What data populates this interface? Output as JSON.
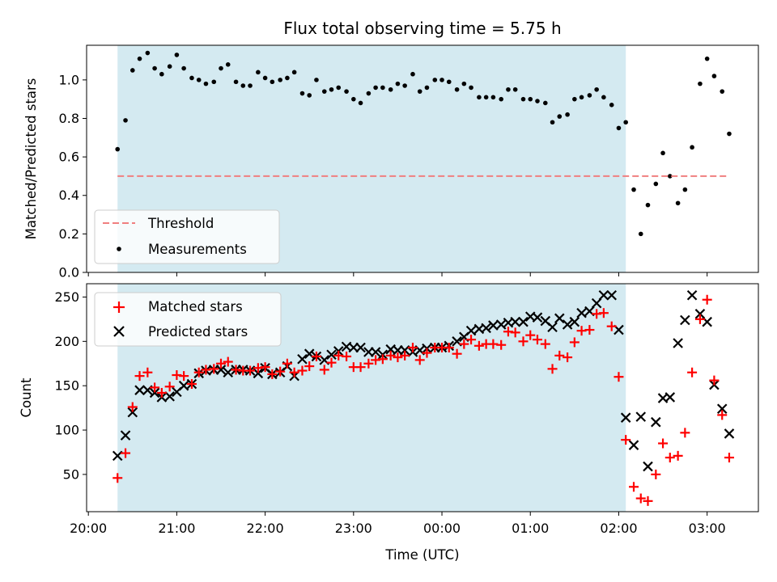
{
  "chart_data": [
    {
      "type": "scatter",
      "title": "Flux total observing time = 5.75 h",
      "xlabel": "",
      "ylabel": "Matched/Predicted stars",
      "ylim": [
        0,
        1.18
      ],
      "yticks": [
        0.0,
        0.2,
        0.4,
        0.6,
        0.8,
        1.0
      ],
      "ytick_labels": [
        "0.0",
        "0.2",
        "0.4",
        "0.6",
        "0.8",
        "1.0"
      ],
      "shaded_interval": [
        20.33,
        26.08
      ],
      "shaded_color": "#d4eaf1",
      "threshold": {
        "name": "Threshold",
        "value": 0.5,
        "color": "#f07f7f",
        "style": "dashed"
      },
      "legend_position": "lower-left",
      "series": [
        {
          "name": "Measurements",
          "marker": "dot",
          "color": "#000000",
          "x": [
            20.33,
            20.42,
            20.5,
            20.58,
            20.67,
            20.75,
            20.83,
            20.92,
            21.0,
            21.08,
            21.17,
            21.25,
            21.33,
            21.42,
            21.5,
            21.58,
            21.67,
            21.75,
            21.83,
            21.92,
            22.0,
            22.08,
            22.17,
            22.25,
            22.33,
            22.42,
            22.5,
            22.58,
            22.67,
            22.75,
            22.83,
            22.92,
            23.0,
            23.08,
            23.17,
            23.25,
            23.33,
            23.42,
            23.5,
            23.58,
            23.67,
            23.75,
            23.83,
            23.92,
            24.0,
            24.08,
            24.17,
            24.25,
            24.33,
            24.42,
            24.5,
            24.58,
            24.67,
            24.75,
            24.83,
            24.92,
            25.0,
            25.08,
            25.17,
            25.25,
            25.33,
            25.42,
            25.5,
            25.58,
            25.67,
            25.75,
            25.83,
            25.92,
            26.0,
            26.08,
            26.17,
            26.25,
            26.33,
            26.42,
            26.5,
            26.58,
            26.67,
            26.75,
            26.83,
            26.92,
            27.0,
            27.08,
            27.17,
            27.25
          ],
          "y": [
            0.64,
            0.79,
            1.05,
            1.11,
            1.14,
            1.06,
            1.03,
            1.07,
            1.13,
            1.06,
            1.01,
            1.0,
            0.98,
            0.99,
            1.06,
            1.08,
            0.99,
            0.97,
            0.97,
            1.04,
            1.01,
            0.99,
            1.0,
            1.01,
            1.04,
            0.93,
            0.92,
            1.0,
            0.94,
            0.95,
            0.96,
            0.94,
            0.9,
            0.88,
            0.93,
            0.96,
            0.96,
            0.95,
            0.98,
            0.97,
            1.03,
            0.94,
            0.96,
            1.0,
            1.0,
            0.99,
            0.95,
            0.98,
            0.96,
            0.91,
            0.91,
            0.91,
            0.9,
            0.95,
            0.95,
            0.9,
            0.9,
            0.89,
            0.88,
            0.78,
            0.81,
            0.82,
            0.9,
            0.91,
            0.92,
            0.95,
            0.91,
            0.87,
            0.75,
            0.78,
            0.43,
            0.2,
            0.35,
            0.46,
            0.62,
            0.5,
            0.36,
            0.43,
            0.65,
            0.98,
            1.11,
            1.02,
            0.94,
            0.72
          ]
        }
      ]
    },
    {
      "type": "scatter",
      "title": "",
      "xlabel": "Time (UTC)",
      "ylabel": "Count",
      "ylim": [
        8,
        265
      ],
      "yticks": [
        50,
        100,
        150,
        200,
        250
      ],
      "ytick_labels": [
        "50",
        "100",
        "150",
        "200",
        "250"
      ],
      "xlim": [
        19.98,
        27.58
      ],
      "xticks": [
        20,
        21,
        22,
        23,
        24,
        25,
        26,
        27
      ],
      "xtick_labels": [
        "20:00",
        "21:00",
        "22:00",
        "23:00",
        "00:00",
        "01:00",
        "02:00",
        "03:00"
      ],
      "shaded_interval": [
        20.33,
        26.08
      ],
      "shaded_color": "#d4eaf1",
      "legend_position": "upper-left",
      "series": [
        {
          "name": "Matched stars",
          "marker": "plus",
          "color": "#ff0000",
          "x": [
            20.33,
            20.42,
            20.5,
            20.58,
            20.67,
            20.75,
            20.83,
            20.92,
            21.0,
            21.08,
            21.17,
            21.25,
            21.33,
            21.42,
            21.5,
            21.58,
            21.67,
            21.75,
            21.83,
            21.92,
            22.0,
            22.08,
            22.17,
            22.25,
            22.33,
            22.42,
            22.5,
            22.58,
            22.67,
            22.75,
            22.83,
            22.92,
            23.0,
            23.08,
            23.17,
            23.25,
            23.33,
            23.42,
            23.5,
            23.58,
            23.67,
            23.75,
            23.83,
            23.92,
            24.0,
            24.08,
            24.17,
            24.25,
            24.33,
            24.42,
            24.5,
            24.58,
            24.67,
            24.75,
            24.83,
            24.92,
            25.0,
            25.08,
            25.17,
            25.25,
            25.33,
            25.42,
            25.5,
            25.58,
            25.67,
            25.75,
            25.83,
            25.92,
            26.0,
            26.08,
            26.17,
            26.25,
            26.33,
            26.42,
            26.5,
            26.58,
            26.67,
            26.75,
            26.83,
            26.92,
            27.0,
            27.08,
            27.17,
            27.25
          ],
          "y": [
            46,
            74,
            126,
            161,
            165,
            148,
            142,
            149,
            162,
            161,
            152,
            165,
            168,
            169,
            175,
            177,
            168,
            167,
            167,
            170,
            171,
            163,
            166,
            175,
            165,
            167,
            172,
            183,
            168,
            176,
            184,
            183,
            171,
            171,
            175,
            179,
            180,
            184,
            182,
            184,
            193,
            179,
            187,
            193,
            193,
            193,
            186,
            197,
            202,
            195,
            197,
            197,
            196,
            211,
            210,
            200,
            207,
            202,
            197,
            169,
            184,
            182,
            199,
            212,
            213,
            231,
            232,
            217,
            160,
            89,
            36,
            23,
            20,
            50,
            85,
            69,
            71,
            97,
            165,
            225,
            247,
            156,
            117,
            69
          ]
        },
        {
          "name": "Predicted stars",
          "marker": "x",
          "color": "#000000",
          "x": [
            20.33,
            20.42,
            20.5,
            20.58,
            20.67,
            20.75,
            20.83,
            20.92,
            21.0,
            21.08,
            21.17,
            21.25,
            21.33,
            21.42,
            21.5,
            21.58,
            21.67,
            21.75,
            21.83,
            21.92,
            22.0,
            22.08,
            22.17,
            22.25,
            22.33,
            22.42,
            22.5,
            22.58,
            22.67,
            22.75,
            22.83,
            22.92,
            23.0,
            23.08,
            23.17,
            23.25,
            23.33,
            23.42,
            23.5,
            23.58,
            23.67,
            23.75,
            23.83,
            23.92,
            24.0,
            24.08,
            24.17,
            24.25,
            24.33,
            24.42,
            24.5,
            24.58,
            24.67,
            24.75,
            24.83,
            24.92,
            25.0,
            25.08,
            25.17,
            25.25,
            25.33,
            25.42,
            25.5,
            25.58,
            25.67,
            25.75,
            25.83,
            25.92,
            26.0,
            26.08,
            26.17,
            26.25,
            26.33,
            26.42,
            26.5,
            26.58,
            26.67,
            26.75,
            26.83,
            26.92,
            27.0,
            27.08,
            27.17,
            27.25
          ],
          "y": [
            71,
            94,
            120,
            145,
            145,
            142,
            137,
            138,
            143,
            150,
            152,
            164,
            167,
            168,
            168,
            165,
            168,
            168,
            167,
            164,
            170,
            163,
            165,
            172,
            161,
            180,
            186,
            183,
            179,
            185,
            189,
            194,
            193,
            193,
            188,
            188,
            185,
            191,
            190,
            190,
            188,
            190,
            192,
            193,
            193,
            195,
            200,
            205,
            212,
            214,
            215,
            218,
            219,
            221,
            222,
            222,
            228,
            227,
            223,
            216,
            226,
            219,
            222,
            232,
            234,
            243,
            252,
            252,
            213,
            114,
            83,
            115,
            59,
            109,
            136,
            137,
            198,
            224,
            252,
            231,
            222,
            151,
            124,
            96
          ]
        }
      ]
    }
  ]
}
